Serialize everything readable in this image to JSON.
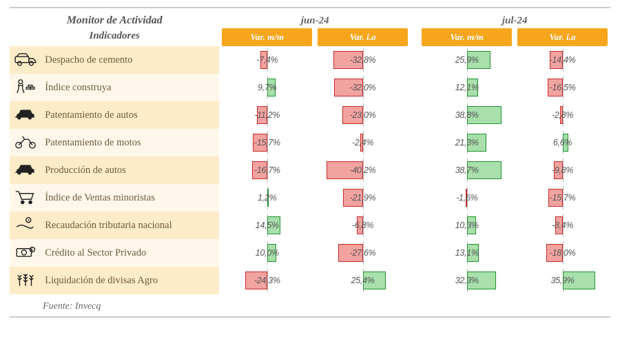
{
  "colors": {
    "header_bg": "#f7a51c",
    "pos_fill": "#a8dfab",
    "pos_border": "#1f8f2e",
    "neg_fill": "#f2a3a0",
    "neg_border": "#c62828",
    "row_a": "#feebc8",
    "row_b": "#fff8ea",
    "icon_stroke": "#222222"
  },
  "title": "Monitor de Actividad",
  "subtitle": "Indicadores",
  "periods": [
    "jun-24",
    "jul-24"
  ],
  "col_labels": [
    "Var. m/m",
    "Var. i.a"
  ],
  "scale_pct": 50,
  "source": "Fuente: Invecq",
  "indicators": [
    {
      "icon": "truck",
      "label": "Despacho de cemento",
      "v": [
        -7.4,
        -32.8,
        25.9,
        -14.4
      ]
    },
    {
      "icon": "worker",
      "label": "Índice construya",
      "v": [
        9.7,
        -32.0,
        12.1,
        -16.5
      ]
    },
    {
      "icon": "car",
      "label": "Patentamiento de autos",
      "v": [
        -11.2,
        -23.0,
        38.8,
        -2.8
      ]
    },
    {
      "icon": "moto",
      "label": "Patentamiento de motos",
      "v": [
        -15.7,
        -2.4,
        21.3,
        6.6
      ]
    },
    {
      "icon": "car",
      "label": "Producción de autos",
      "v": [
        -16.7,
        -40.2,
        38.7,
        -9.8
      ]
    },
    {
      "icon": "cart",
      "label": "Índice de Ventas minoristas",
      "v": [
        1.2,
        -21.9,
        -1.6,
        -15.7
      ]
    },
    {
      "icon": "hand",
      "label": "Recaudación tributaria nacional",
      "v": [
        14.5,
        -6.8,
        10.3,
        -8.4
      ]
    },
    {
      "icon": "money",
      "label": "Crédito al Sector Privado",
      "v": [
        10.0,
        -27.6,
        13.1,
        -18.0
      ]
    },
    {
      "icon": "wheat",
      "label": "Liquidación de divisas Agro",
      "v": [
        -24.3,
        25.4,
        32.3,
        35.9
      ]
    }
  ]
}
